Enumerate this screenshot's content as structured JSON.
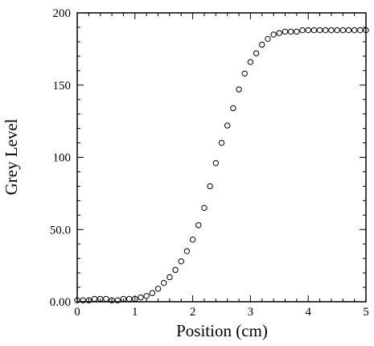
{
  "chart_data": {
    "type": "scatter",
    "title": "",
    "xlabel": "Position (cm)",
    "ylabel": "Grey Level",
    "xlim": [
      0,
      5
    ],
    "ylim": [
      0,
      200
    ],
    "x_ticks": [
      0,
      1,
      2,
      3,
      4,
      5
    ],
    "x_tick_labels": [
      "0",
      "1",
      "2",
      "3",
      "4",
      "5"
    ],
    "y_ticks": [
      0,
      50,
      100,
      150,
      200
    ],
    "y_tick_labels": [
      "0.00",
      "50.0",
      "100",
      "150",
      "200"
    ],
    "grid": false,
    "legend": "none",
    "marker": "open-circle",
    "color": "#000000",
    "series": [
      {
        "values_x": [
          0.0,
          0.1,
          0.2,
          0.3,
          0.4,
          0.5,
          0.6,
          0.7,
          0.8,
          0.9,
          1.0,
          1.1,
          1.2,
          1.3,
          1.4,
          1.5,
          1.6,
          1.7,
          1.8,
          1.9,
          2.0,
          2.1,
          2.2,
          2.3,
          2.4,
          2.5,
          2.6,
          2.7,
          2.8,
          2.9,
          3.0,
          3.1,
          3.2,
          3.3,
          3.4,
          3.5,
          3.6,
          3.7,
          3.8,
          3.9,
          4.0,
          4.1,
          4.2,
          4.3,
          4.4,
          4.5,
          4.6,
          4.7,
          4.8,
          4.9,
          5.0
        ],
        "values_y": [
          1,
          1,
          1,
          2,
          2,
          2,
          1,
          1,
          2,
          2,
          2,
          3,
          4,
          6,
          9,
          13,
          17,
          22,
          28,
          35,
          43,
          53,
          65,
          80,
          96,
          110,
          122,
          134,
          147,
          158,
          166,
          172,
          178,
          182,
          185,
          186,
          187,
          187,
          187,
          188,
          188,
          188,
          188,
          188,
          188,
          188,
          188,
          188,
          188,
          188,
          188
        ]
      }
    ]
  }
}
